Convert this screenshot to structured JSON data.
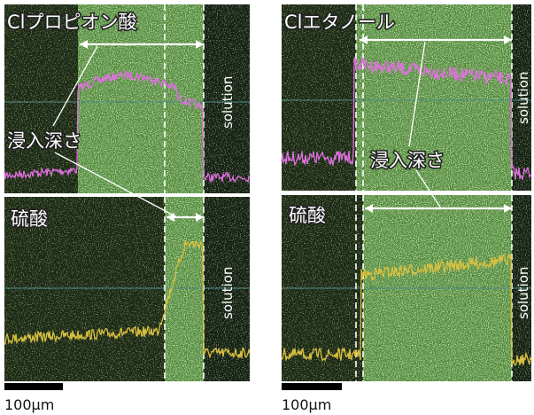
{
  "panels": [
    {
      "title": "Clプロピオン酸",
      "depth_label": "浸入深さ",
      "top_solution": "solution",
      "bottom_label": "硫酸",
      "bottom_solution": "solution",
      "scale": "100µm"
    },
    {
      "title": "Clエタノール",
      "depth_label": "浸入深さ",
      "top_solution": "solution",
      "bottom_label": "硫酸",
      "bottom_solution": "solution",
      "scale": "100µm"
    }
  ]
}
